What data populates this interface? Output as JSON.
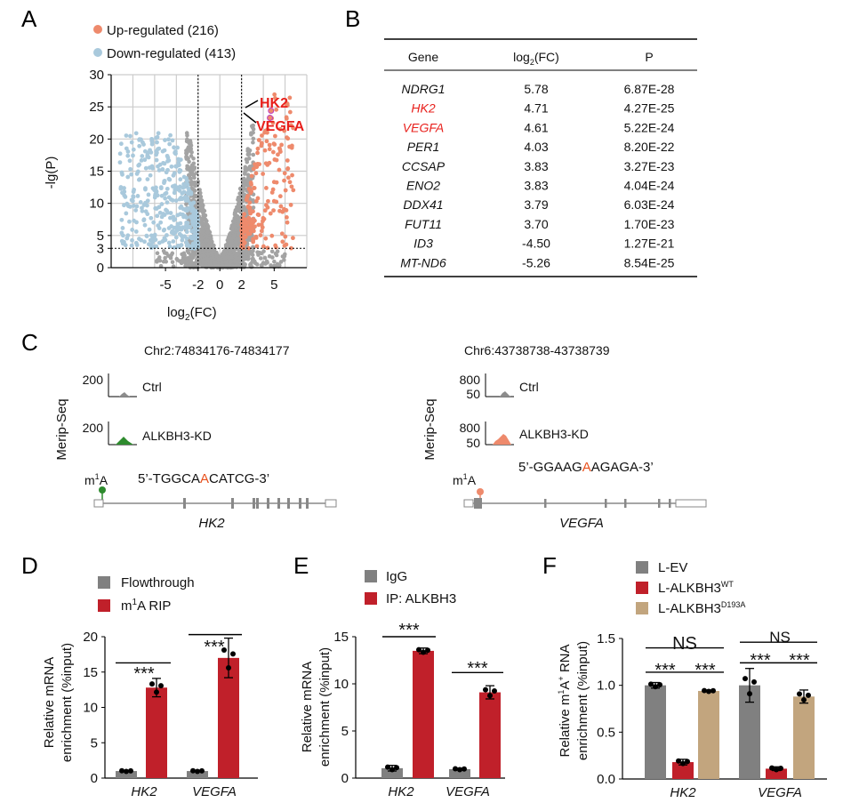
{
  "panels": {
    "A": {
      "letter": "A",
      "legend": [
        {
          "label": "Up-regulated (216)",
          "color": "#ee8a6c"
        },
        {
          "label": "Down-regulated (413)",
          "color": "#a9c9dc"
        }
      ],
      "ylabel": "-lg(P)",
      "xlabel_main": "log",
      "xlabel_sub": "2",
      "xlabel_tail": "(FC)",
      "callouts": [
        "HK2",
        "VEGFA"
      ]
    },
    "B": {
      "letter": "B",
      "header": {
        "gene": "Gene",
        "fc_main": "log",
        "fc_sub": "2",
        "fc_tail": "(FC)",
        "p": "P"
      },
      "rows": [
        {
          "gene": "NDRG1",
          "fc": "5.78",
          "p": "6.87E-28",
          "hl": false
        },
        {
          "gene": "HK2",
          "fc": "4.71",
          "p": "4.27E-25",
          "hl": true
        },
        {
          "gene": "VEGFA",
          "fc": "4.61",
          "p": "5.22E-24",
          "hl": true
        },
        {
          "gene": "PER1",
          "fc": "4.03",
          "p": "8.20E-22",
          "hl": false
        },
        {
          "gene": "CCSAP",
          "fc": "3.83",
          "p": "3.27E-23",
          "hl": false
        },
        {
          "gene": "ENO2",
          "fc": "3.83",
          "p": "4.04E-24",
          "hl": false
        },
        {
          "gene": "DDX41",
          "fc": "3.79",
          "p": "6.03E-24",
          "hl": false
        },
        {
          "gene": "FUT11",
          "fc": "3.70",
          "p": "1.70E-23",
          "hl": false
        },
        {
          "gene": "ID3",
          "fc": "-4.50",
          "p": "1.27E-21",
          "hl": false
        },
        {
          "gene": "MT-ND6",
          "fc": "-5.26",
          "p": "8.54E-25",
          "hl": false
        }
      ]
    },
    "C": {
      "letter": "C",
      "ylabel": "Merip-Seq",
      "left": {
        "locus": "Chr2:74834176-74834177",
        "ctrl_label": "Ctrl",
        "kd_label": "ALKBH3-KD",
        "ctrl_scale": "200",
        "kd_scale": "200",
        "m1a_main": "m",
        "m1a_sup": "1",
        "m1a_tail": "A",
        "seq_pre": "5’-TGGCA",
        "seq_mod": "A",
        "seq_post": "CATCG-3’",
        "gene": "HK2",
        "color": "#2e8b2e"
      },
      "right": {
        "locus": "Chr6:43738738-43738739",
        "ctrl_label": "Ctrl",
        "kd_label": "ALKBH3-KD",
        "ctrl_scale_top": "800",
        "ctrl_scale_bottom": "50",
        "kd_scale_top": "800",
        "kd_scale_bottom": "50",
        "m1a_main": "m",
        "m1a_sup": "1",
        "m1a_tail": "A",
        "seq_pre": "5’-GGAAG",
        "seq_mod": "A",
        "seq_post": "AGAGA-3’",
        "gene": "VEGFA",
        "color": "#ee8a6c"
      }
    },
    "D": {
      "letter": "D",
      "legend": [
        {
          "label": "Flowthrough",
          "color": "#808080"
        },
        {
          "label_main": "m",
          "label_sup": "1",
          "label_tail": "A RIP",
          "color": "#c0202a"
        }
      ],
      "ylabel1": "Relative mRNA",
      "ylabel2": "enrichment (%input)",
      "sig": [
        "***",
        "***"
      ]
    },
    "E": {
      "letter": "E",
      "legend": [
        {
          "label": "IgG",
          "color": "#808080"
        },
        {
          "label": "IP: ALKBH3",
          "color": "#c0202a"
        }
      ],
      "ylabel1": "Relative mRNA",
      "ylabel2": "enrichment (%input)",
      "sig": [
        "***",
        "***"
      ]
    },
    "F": {
      "letter": "F",
      "legend": [
        {
          "label": "L-EV",
          "color": "#808080"
        },
        {
          "label_main": "L-ALKBH3",
          "label_sup": "WT",
          "color": "#c0202a"
        },
        {
          "label_main": "L-ALKBH3",
          "label_sup": "D193A",
          "color": "#c2a57e"
        }
      ],
      "ylabel1_main": "Relative m",
      "ylabel1_sup": "1",
      "ylabel1_tail": "A",
      "ylabel1_sup2": "+",
      "ylabel1_tail2": " RNA",
      "ylabel2": "enrichment (%input)",
      "sig_ns": [
        "NS",
        "NS"
      ],
      "sig": [
        "***",
        "***",
        "***",
        "***"
      ]
    }
  },
  "chart_data": [
    {
      "panel": "A",
      "type": "scatter",
      "x_ticks": [
        -5,
        -2,
        0,
        2,
        5
      ],
      "y_ticks": [
        0,
        3,
        5,
        10,
        15,
        20,
        25,
        30
      ],
      "xlim": [
        -10,
        8
      ],
      "ylim": [
        0,
        30
      ],
      "grid": true,
      "thresholds": {
        "x": [
          -2,
          2
        ],
        "y": 3
      },
      "series": [
        {
          "name": "Up-regulated (216)",
          "color": "#ee8a6c"
        },
        {
          "name": "Down-regulated (413)",
          "color": "#a9c9dc"
        }
      ],
      "highlighted": [
        {
          "name": "HK2",
          "x": 4.71,
          "y": 24.4
        },
        {
          "name": "VEGFA",
          "x": 4.61,
          "y": 23.3
        }
      ]
    },
    {
      "panel": "D",
      "type": "bar",
      "categories": [
        "HK2",
        "VEGFA"
      ],
      "ylim": [
        0,
        20
      ],
      "y_ticks": [
        0,
        5,
        10,
        15,
        20
      ],
      "series": [
        {
          "name": "Flowthrough",
          "values": [
            1.0,
            1.0
          ],
          "errors": [
            0.1,
            0.1
          ],
          "color": "#808080"
        },
        {
          "name": "m1A RIP",
          "values": [
            12.8,
            17.0
          ],
          "errors": [
            1.3,
            2.8
          ],
          "color": "#c0202a"
        }
      ]
    },
    {
      "panel": "E",
      "type": "bar",
      "categories": [
        "HK2",
        "VEGFA"
      ],
      "ylim": [
        0,
        15
      ],
      "y_ticks": [
        0,
        5,
        10,
        15
      ],
      "series": [
        {
          "name": "IgG",
          "values": [
            1.05,
            0.95
          ],
          "errors": [
            0.3,
            0.1
          ],
          "color": "#808080"
        },
        {
          "name": "IP: ALKBH3",
          "values": [
            13.5,
            9.1
          ],
          "errors": [
            0.3,
            0.7
          ],
          "color": "#c0202a"
        }
      ]
    },
    {
      "panel": "F",
      "type": "bar",
      "categories": [
        "HK2",
        "VEGFA"
      ],
      "ylim": [
        0,
        1.5
      ],
      "y_ticks": [
        0.0,
        0.5,
        1.0,
        1.5
      ],
      "series": [
        {
          "name": "L-EV",
          "values": [
            1.0,
            1.0
          ],
          "errors": [
            0.03,
            0.18
          ],
          "color": "#808080"
        },
        {
          "name": "L-ALKBH3WT",
          "values": [
            0.18,
            0.11
          ],
          "errors": [
            0.03,
            0.02
          ],
          "color": "#c0202a"
        },
        {
          "name": "L-ALKBH3D193A",
          "values": [
            0.94,
            0.88
          ],
          "errors": [
            0.01,
            0.07
          ],
          "color": "#c2a57e"
        }
      ]
    }
  ]
}
